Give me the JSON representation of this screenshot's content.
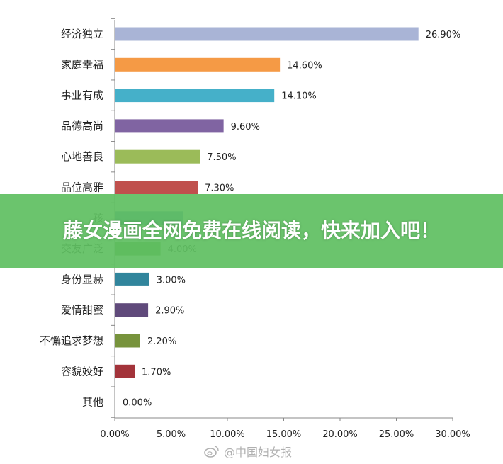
{
  "chart_data": {
    "type": "bar",
    "orientation": "horizontal",
    "title": "",
    "xlabel": "",
    "ylabel": "",
    "xlim": [
      0,
      30
    ],
    "x_tick_values": [
      0,
      5,
      10,
      15,
      20,
      25,
      30
    ],
    "x_tick_labels": [
      "0.00%",
      "5.00%",
      "10.00%",
      "15.00%",
      "20.00%",
      "25.00%",
      "30.00%"
    ],
    "grid": false,
    "legend": "none",
    "categories": [
      "经济独立",
      "家庭幸福",
      "事业有成",
      "品德高尚",
      "心地善良",
      "品位高雅",
      "孩",
      "交友广泛",
      "身份显赫",
      "爱情甜蜜",
      "不懈追求梦想",
      "容貌姣好",
      "其他"
    ],
    "values": [
      26.9,
      14.6,
      14.1,
      9.6,
      7.5,
      7.3,
      6.0,
      4.0,
      3.0,
      2.9,
      2.2,
      1.7,
      0.0
    ],
    "value_labels": [
      "26.90%",
      "14.60%",
      "14.10%",
      "9.60%",
      "7.50%",
      "7.30%",
      "",
      "4.00%",
      "3.00%",
      "2.90%",
      "2.20%",
      "1.70%",
      "0.00%"
    ],
    "colors": [
      "#a9b4d6",
      "#f59a45",
      "#45b0c9",
      "#8064a2",
      "#9bbb59",
      "#c0504d",
      "#4e81bd",
      "#5b9a36",
      "#31859c",
      "#604a7b",
      "#77933c",
      "#a3333a",
      "#4f6228"
    ]
  },
  "banner": {
    "text": "藤女漫画全网免费在线阅读，快来加入吧！",
    "color": "#60c062"
  },
  "watermark": {
    "text": "@中国妇女报",
    "icon": "weibo-icon"
  }
}
